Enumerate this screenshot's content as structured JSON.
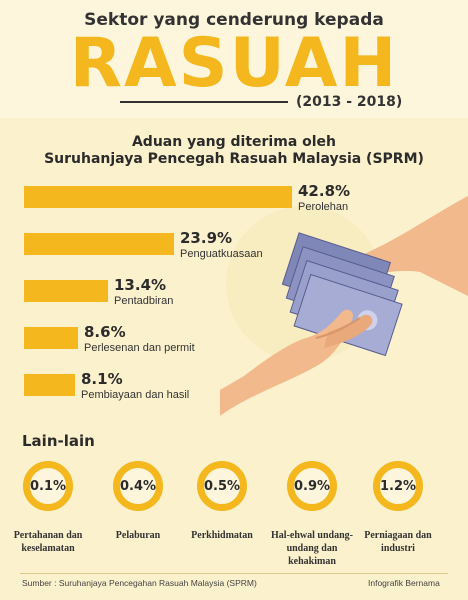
{
  "header": {
    "kicker": "Sektor yang cenderung kepada",
    "title": "RASUAH",
    "period": "(2013 - 2018)"
  },
  "chart_data": {
    "type": "bar",
    "title": "Aduan yang diterima oleh",
    "subtitle": "Suruhanjaya Pencegah Rasuah Malaysia (SPRM)",
    "unit": "%",
    "categories": [
      "Perolehan",
      "Penguatkuasaan",
      "Pentadbiran",
      "Perlesenan dan permit",
      "Pembiayaan dan hasil"
    ],
    "values": [
      42.8,
      23.9,
      13.4,
      8.6,
      8.1
    ],
    "value_labels": [
      "42.8%",
      "23.9%",
      "13.4%",
      "8.6%",
      "8.1%"
    ],
    "orientation": "horizontal",
    "color": "#f4b81e",
    "others": {
      "heading": "Lain-lain",
      "categories": [
        "Pertahanan dan keselamatan",
        "Pelaburan",
        "Perkhidmatan",
        "Hal-ehwal undang-undang dan kehakiman",
        "Perniagaan dan industri"
      ],
      "values": [
        0.1,
        0.4,
        0.5,
        0.9,
        1.2
      ],
      "value_labels": [
        "0.1%",
        "0.4%",
        "0.5%",
        "0.9%",
        "1.2%"
      ]
    }
  },
  "footer": {
    "source": "Sumber : Suruhanjaya Pencegahan Rasuah Malaysia (SPRM)",
    "credit": "Infografik Bernama"
  },
  "colors": {
    "accent": "#f4b81e",
    "background": "#fbf1cd",
    "text": "#2b2b2b"
  }
}
